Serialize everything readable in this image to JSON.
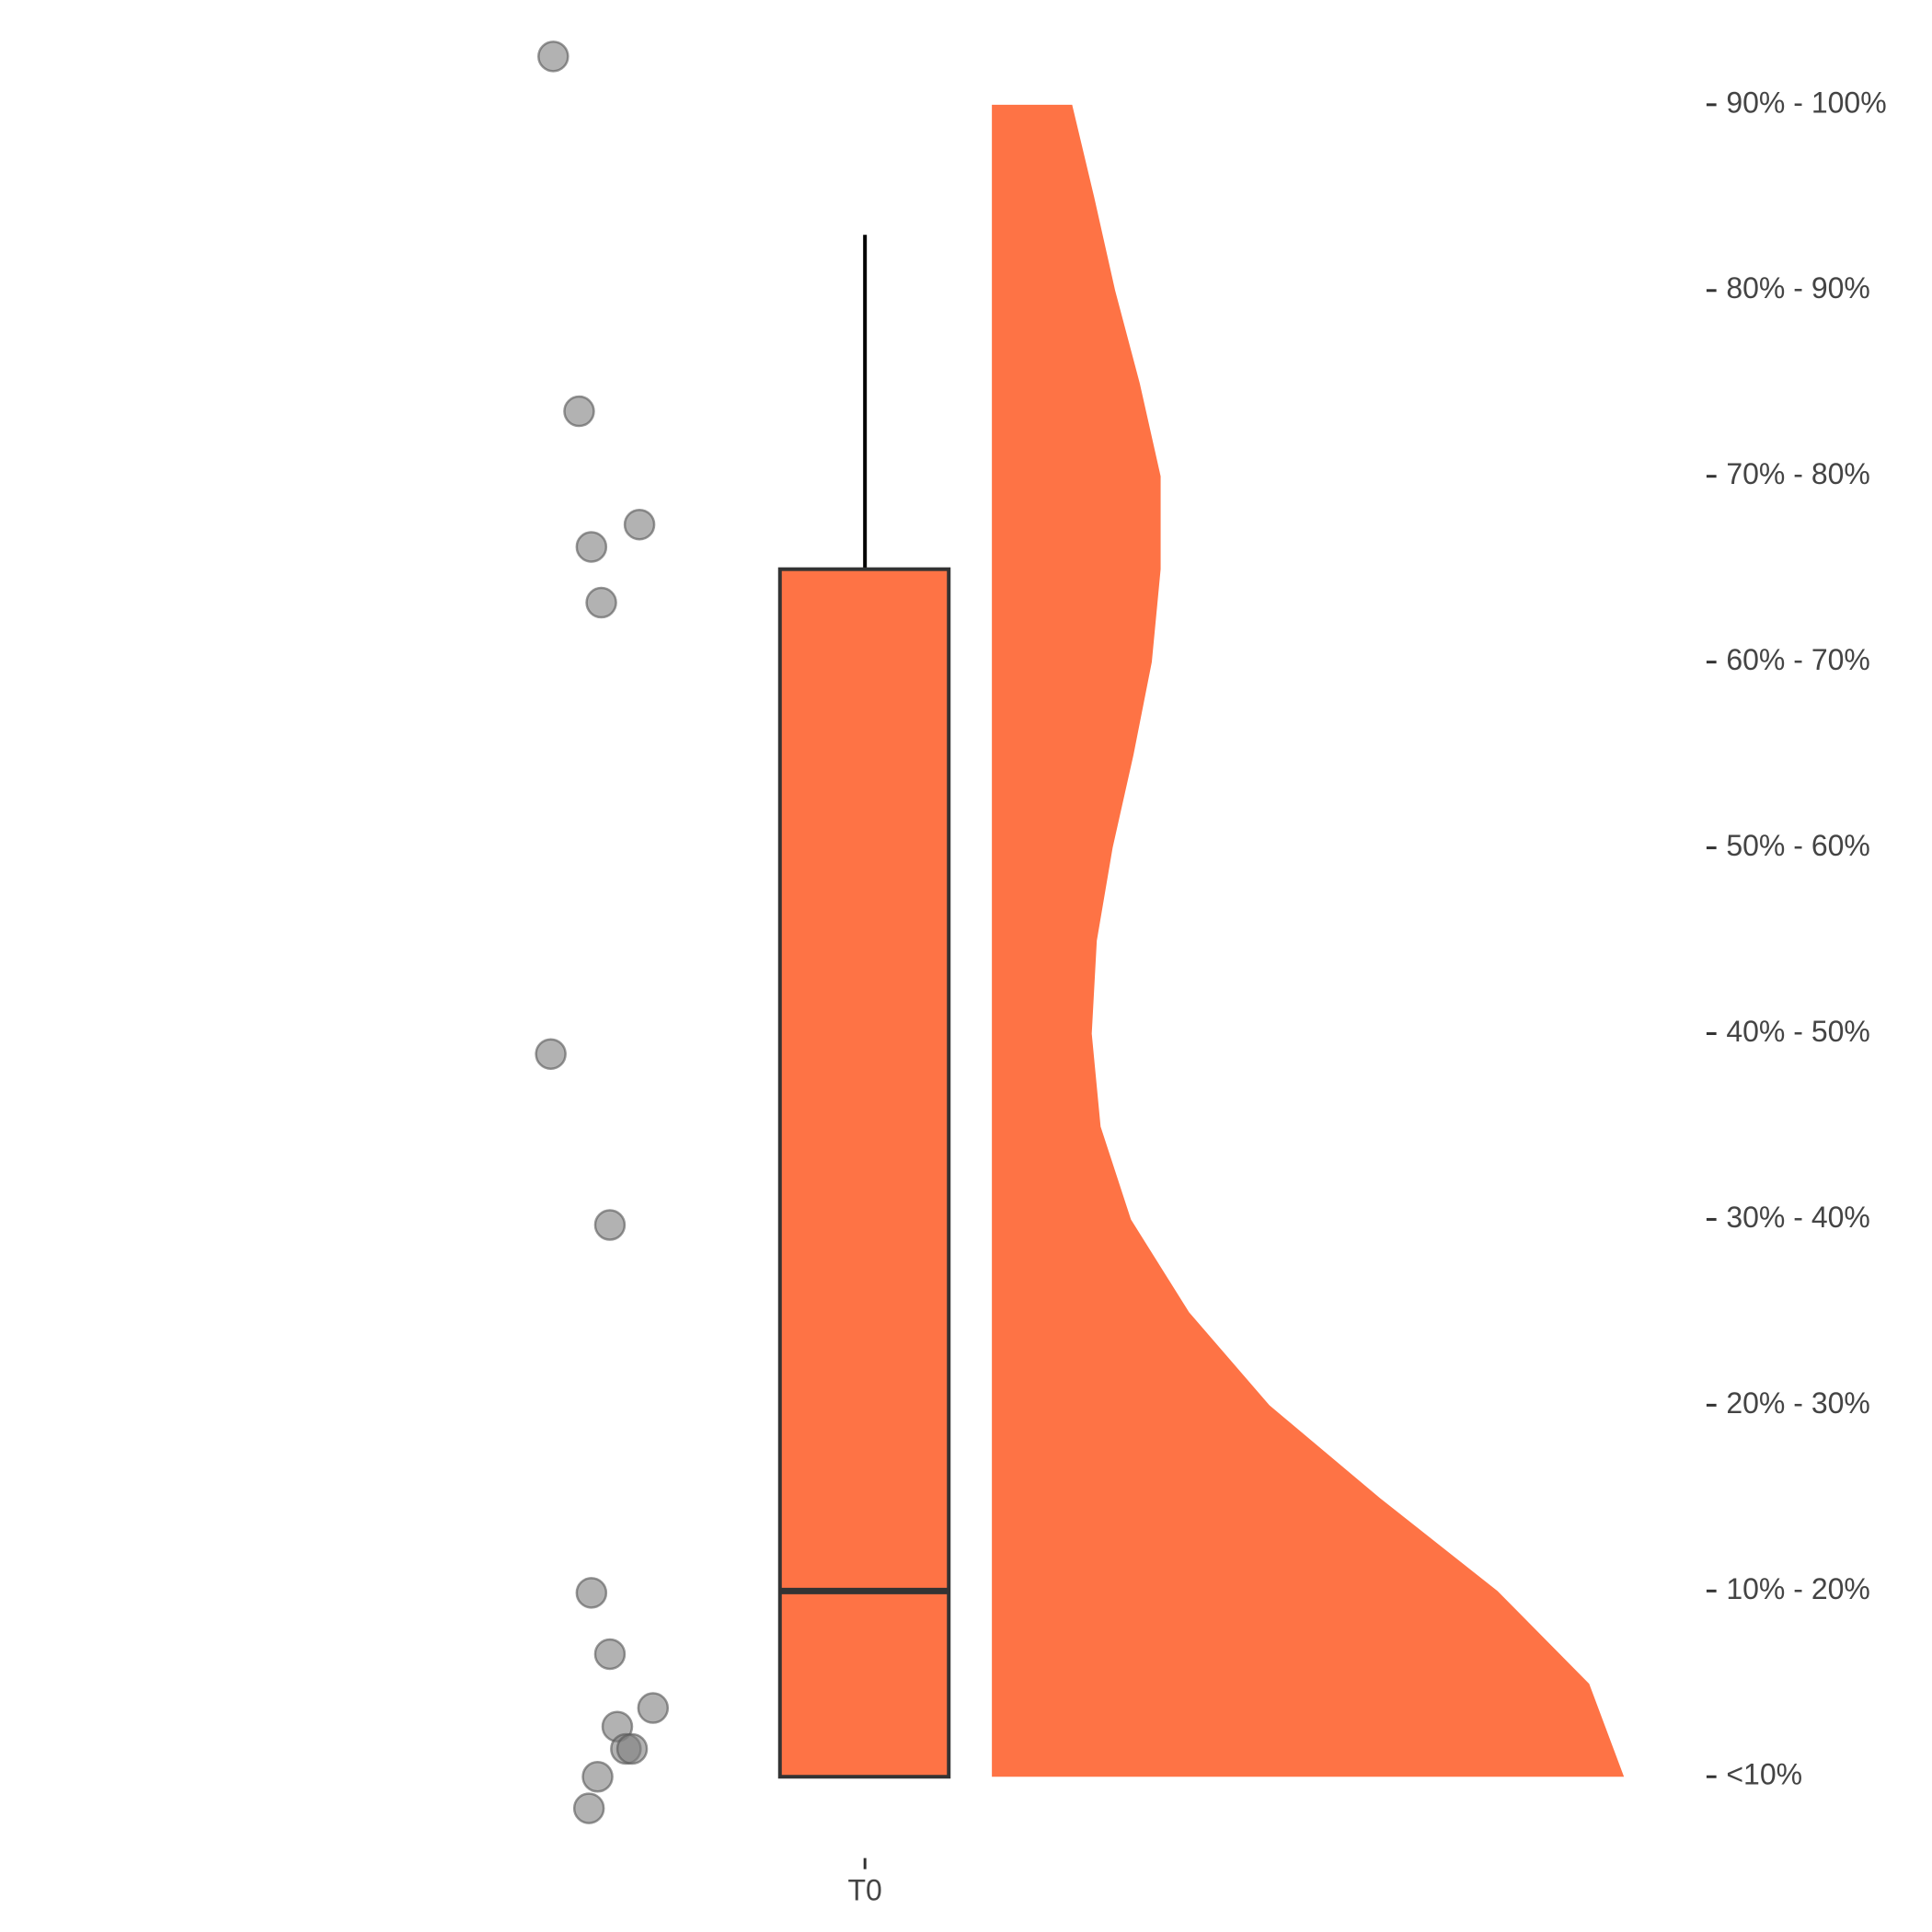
{
  "chart_data": {
    "type": "raincloud",
    "categories": [
      "T0"
    ],
    "color": "#FE7345",
    "point_color": "#7f7f7f",
    "ylim": [
      0.75,
      10.35
    ],
    "yticks": [
      {
        "value": 1,
        "label": "<10%"
      },
      {
        "value": 2,
        "label": "10% - 20%"
      },
      {
        "value": 3,
        "label": "20% - 30%"
      },
      {
        "value": 4,
        "label": "30% - 40%"
      },
      {
        "value": 5,
        "label": "40% - 50%"
      },
      {
        "value": 6,
        "label": "50% - 60%"
      },
      {
        "value": 7,
        "label": "60% - 70%"
      },
      {
        "value": 8,
        "label": "70% - 80%"
      },
      {
        "value": 9,
        "label": "80% - 90%"
      },
      {
        "value": 10,
        "label": "90% - 100%"
      }
    ],
    "points": [
      10.26,
      8.35,
      7.74,
      7.62,
      7.32,
      4.89,
      3.97,
      1.99,
      1.66,
      1.37,
      1.27,
      1.15,
      1.15,
      1.0,
      0.83
    ],
    "box": {
      "min": 1,
      "q1": 1,
      "median": 2,
      "q3": 7.5,
      "max": 9.3
    },
    "violin": {
      "y": [
        1,
        1.5,
        2,
        2.5,
        3,
        3.5,
        4,
        4.5,
        5,
        5.5,
        6,
        6.5,
        7,
        7.5,
        8,
        8.5,
        9,
        9.5,
        10
      ],
      "density": [
        1,
        0.945,
        0.8,
        0.614,
        0.439,
        0.312,
        0.22,
        0.172,
        0.158,
        0.166,
        0.191,
        0.224,
        0.253,
        0.267,
        0.267,
        0.234,
        0.195,
        0.162,
        0.127
      ]
    }
  }
}
